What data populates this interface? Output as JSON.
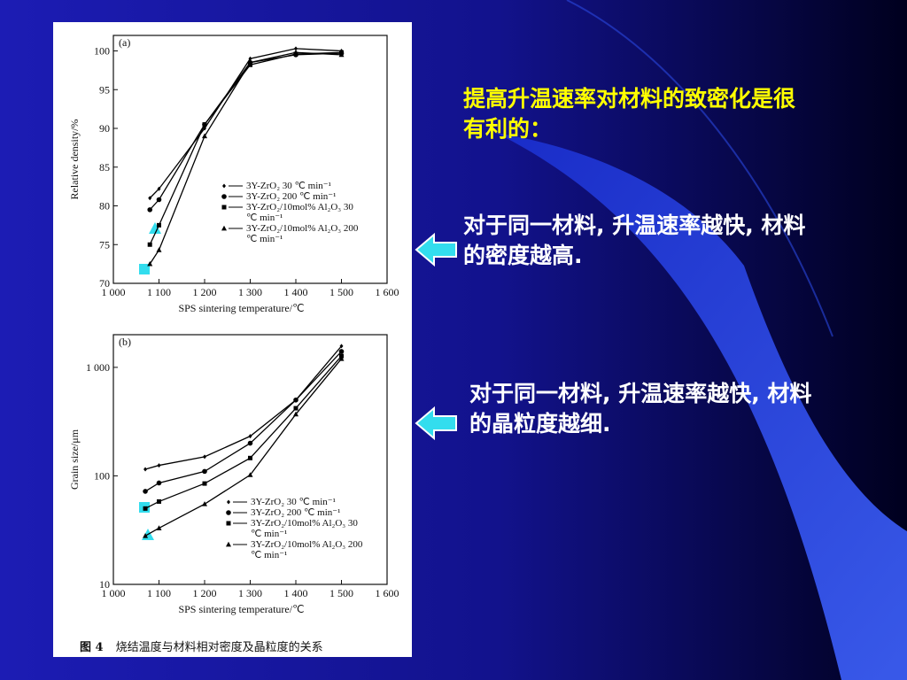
{
  "slide": {
    "heading": "提高升温速率对材料的致密化是很有利的：",
    "points": [
      "对于同一材料, 升温速率越快, 材料的密度越高.",
      "对于同一材料, 升温速率越快, 材料的晶粒度越细."
    ],
    "figure_label": "图 4",
    "figure_caption": "烧结温度与材料相对密度及晶粒度的关系"
  },
  "chart_data": [
    {
      "type": "line",
      "panel": "(a)",
      "x_label": "SPS sintering temperature/℃",
      "y_label": "Relative density/%",
      "xlim": [
        1000,
        1600
      ],
      "xticks": [
        {
          "value": 1000,
          "label": "1 000"
        },
        {
          "value": 1100,
          "label": "1 100"
        },
        {
          "value": 1200,
          "label": "1 200"
        },
        {
          "value": 1300,
          "label": "1 300"
        },
        {
          "value": 1400,
          "label": "1 400"
        },
        {
          "value": 1500,
          "label": "1 500"
        },
        {
          "value": 1600,
          "label": "1 600"
        }
      ],
      "ylim": [
        70,
        102
      ],
      "yticks": [
        70,
        75,
        80,
        85,
        90,
        95,
        100
      ],
      "log_y": false,
      "legend": "lower right",
      "series": [
        {
          "name": "3Y-ZrO₂ 30 ℃ min⁻¹",
          "color": "#000000",
          "marker": "diamond",
          "x": [
            1080,
            1100,
            1200,
            1300,
            1400,
            1500
          ],
          "values": [
            81,
            82.2,
            90,
            99,
            100.3,
            100
          ]
        },
        {
          "name": "3Y-ZrO₂ 200 ℃ min⁻¹",
          "color": "#000000",
          "marker": "circle",
          "x": [
            1080,
            1100,
            1200,
            1300,
            1400,
            1500
          ],
          "values": [
            79.5,
            80.8,
            90.5,
            98.5,
            99.5,
            99.7
          ]
        },
        {
          "name": "3Y-ZrO₂/10mol% Al₂O₃ 30 ℃ min⁻¹",
          "color": "#000000",
          "marker": "square",
          "x": [
            1080,
            1100,
            1200,
            1300,
            1400,
            1500
          ],
          "values": [
            75,
            77.5,
            90.5,
            98.2,
            99.6,
            99.8
          ]
        },
        {
          "name": "3Y-ZrO₂/10mol% Al₂O₃ 200 ℃ min⁻¹",
          "color": "#000000",
          "marker": "triangle",
          "x": [
            1080,
            1100,
            1200,
            1300,
            1400,
            1500
          ],
          "values": [
            72.5,
            74.3,
            89,
            98.5,
            99.8,
            99.5
          ]
        }
      ]
    },
    {
      "type": "line",
      "panel": "(b)",
      "x_label": "SPS sintering temperature/℃",
      "y_label": "Grain size/μm",
      "xlim": [
        1000,
        1600
      ],
      "xticks": [
        {
          "value": 1000,
          "label": "1 000"
        },
        {
          "value": 1100,
          "label": "1 100"
        },
        {
          "value": 1200,
          "label": "1 200"
        },
        {
          "value": 1300,
          "label": "1 300"
        },
        {
          "value": 1400,
          "label": "1 400"
        },
        {
          "value": 1500,
          "label": "1 500"
        },
        {
          "value": 1600,
          "label": "1 600"
        }
      ],
      "ylim": [
        10,
        2000
      ],
      "yticks": [
        10,
        100,
        {
          "value": 1000,
          "label": "1 000"
        }
      ],
      "log_y": true,
      "legend": "lower right",
      "series": [
        {
          "name": "3Y-ZrO₂ 30 ℃ min⁻¹",
          "color": "#000000",
          "marker": "diamond",
          "x": [
            1070,
            1100,
            1200,
            1300,
            1400,
            1500
          ],
          "values": [
            115,
            125,
            150,
            232,
            500,
            1570
          ]
        },
        {
          "name": "3Y-ZrO₂ 200 ℃ min⁻¹",
          "color": "#000000",
          "marker": "circle",
          "x": [
            1070,
            1100,
            1200,
            1300,
            1400,
            1500
          ],
          "values": [
            72,
            86,
            110,
            200,
            500,
            1400
          ]
        },
        {
          "name": "3Y-ZrO₂/10mol% Al₂O₃ 30 ℃ min⁻¹",
          "color": "#000000",
          "marker": "square",
          "x": [
            1070,
            1100,
            1200,
            1300,
            1400,
            1500
          ],
          "values": [
            50,
            58,
            85,
            146,
            420,
            1270
          ]
        },
        {
          "name": "3Y-ZrO₂/10mol% Al₂O₃ 200 ℃ min⁻¹",
          "color": "#000000",
          "marker": "triangle",
          "x": [
            1070,
            1100,
            1200,
            1300,
            1400,
            1500
          ],
          "values": [
            28,
            33,
            55,
            102,
            370,
            1200
          ]
        }
      ]
    }
  ]
}
